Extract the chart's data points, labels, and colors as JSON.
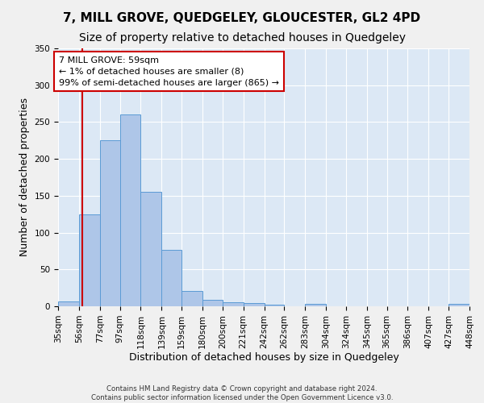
{
  "title": "7, MILL GROVE, QUEDGELEY, GLOUCESTER, GL2 4PD",
  "subtitle": "Size of property relative to detached houses in Quedgeley",
  "xlabel": "Distribution of detached houses by size in Quedgeley",
  "ylabel": "Number of detached properties",
  "bin_edges": [
    35,
    56,
    77,
    97,
    118,
    139,
    159,
    180,
    200,
    221,
    242,
    262,
    283,
    304,
    324,
    345,
    365,
    386,
    407,
    427,
    448
  ],
  "bar_heights": [
    7,
    125,
    225,
    260,
    155,
    77,
    21,
    9,
    5,
    4,
    2,
    0,
    3,
    0,
    0,
    0,
    0,
    0,
    0,
    3
  ],
  "bar_color": "#aec6e8",
  "bar_edge_color": "#5b9bd5",
  "property_size": 59,
  "property_line_color": "#cc0000",
  "annotation_line1": "7 MILL GROVE: 59sqm",
  "annotation_line2": "← 1% of detached houses are smaller (8)",
  "annotation_line3": "99% of semi-detached houses are larger (865) →",
  "annotation_box_color": "#ffffff",
  "annotation_box_edge_color": "#cc0000",
  "ylim": [
    0,
    350
  ],
  "yticks": [
    0,
    50,
    100,
    150,
    200,
    250,
    300,
    350
  ],
  "footer_text": "Contains HM Land Registry data © Crown copyright and database right 2024.\nContains public sector information licensed under the Open Government Licence v3.0.",
  "background_color": "#dce8f5",
  "fig_background_color": "#f0f0f0",
  "title_fontsize": 11,
  "subtitle_fontsize": 10,
  "tick_label_fontsize": 7.5,
  "ylabel_fontsize": 9,
  "xlabel_fontsize": 9,
  "annotation_fontsize": 8
}
